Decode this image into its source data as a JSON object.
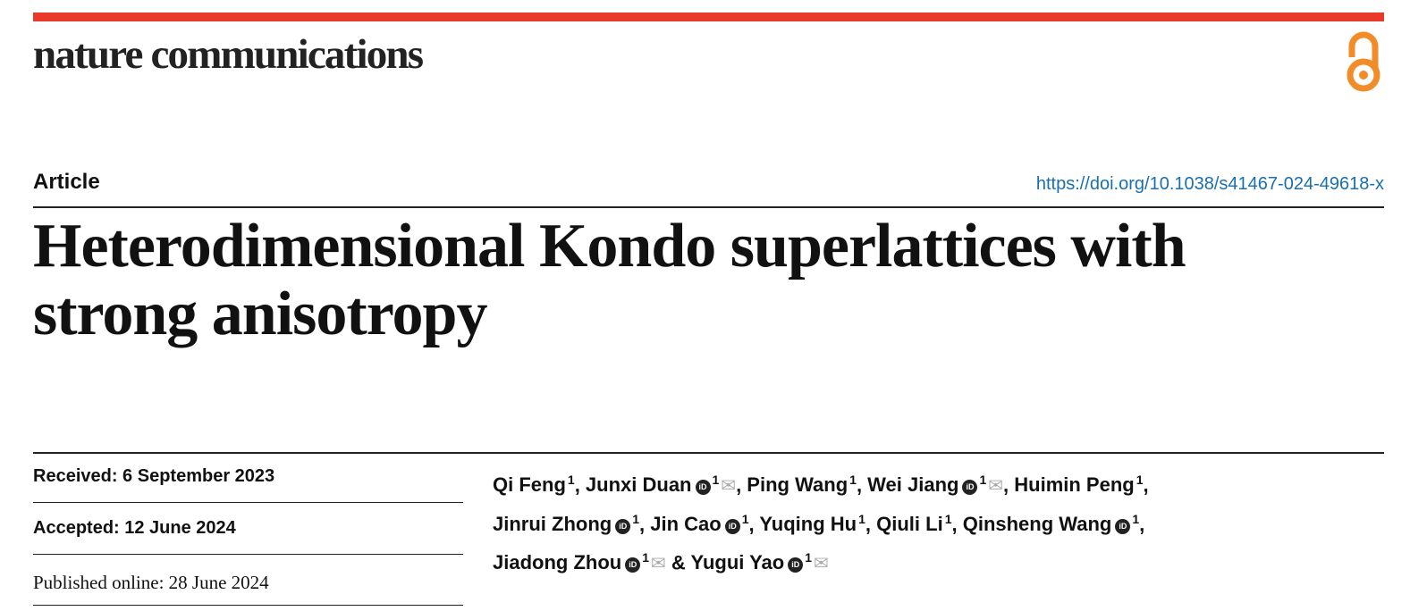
{
  "header": {
    "journal": "nature communications",
    "accent": "#e8392c",
    "open_access_color": "#f28c28"
  },
  "article": {
    "type": "Article",
    "doi": "https://doi.org/10.1038/s41467-024-49618-x",
    "title_line1": "Heterodimensional Kondo superlattices with",
    "title_line2": "strong anisotropy"
  },
  "dates": {
    "received": "Received: 6 September 2023",
    "accepted": "Accepted: 12 June 2024",
    "published": "Published online: 28 June 2024"
  },
  "authors": [
    {
      "name": "Qi Feng",
      "aff": "1",
      "orcid": false,
      "mail": false,
      "sep": ", "
    },
    {
      "name": "Junxi Duan",
      "aff": "1",
      "orcid": true,
      "mail": true,
      "sep": ", "
    },
    {
      "name": "Ping Wang",
      "aff": "1",
      "orcid": false,
      "mail": false,
      "sep": ", "
    },
    {
      "name": "Wei Jiang",
      "aff": "1",
      "orcid": true,
      "mail": true,
      "sep": ", "
    },
    {
      "name": "Huimin Peng",
      "aff": "1",
      "orcid": false,
      "mail": false,
      "sep": ","
    },
    {
      "name": "Jinrui Zhong",
      "aff": "1",
      "orcid": true,
      "mail": false,
      "sep": ", "
    },
    {
      "name": "Jin Cao",
      "aff": "1",
      "orcid": true,
      "mail": false,
      "sep": ", "
    },
    {
      "name": "Yuqing Hu",
      "aff": "1",
      "orcid": false,
      "mail": false,
      "sep": ", "
    },
    {
      "name": "Qiuli Li",
      "aff": "1",
      "orcid": false,
      "mail": false,
      "sep": ", "
    },
    {
      "name": "Qinsheng Wang",
      "aff": "1",
      "orcid": true,
      "mail": false,
      "sep": ","
    },
    {
      "name": "Jiadong Zhou",
      "aff": "1",
      "orcid": true,
      "mail": true,
      "sep": " & "
    },
    {
      "name": "Yugui Yao",
      "aff": "1",
      "orcid": true,
      "mail": true,
      "sep": ""
    }
  ]
}
